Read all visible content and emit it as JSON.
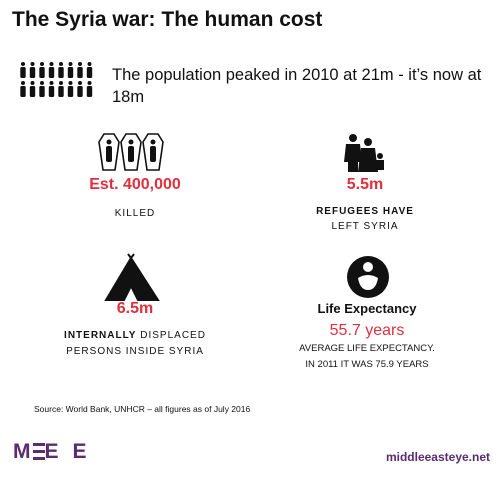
{
  "header": {
    "title": "The Syria war: The human cost"
  },
  "intro": "The population peaked in 2010 at 21m - it’s now at 18m",
  "stats": [
    {
      "value": "Est. 400,000",
      "lines": [
        "KILLED"
      ]
    },
    {
      "value": "5.5m",
      "lines": [
        "REFUGEES HAVE",
        "LEFT SYRIA"
      ]
    },
    {
      "value": "6.5m",
      "lines": [
        {
          "bold": "INTERNALLY",
          "text": "DISPLACED"
        },
        "PERSONS INSIDE SYRIA"
      ]
    },
    {
      "heading": "Life Expectancy",
      "value": "55.7 years",
      "lines": [
        "AVERAGE LIFE EXPECTANCY.",
        "IN 2011 IT WAS 75.9 YEARS"
      ]
    }
  ],
  "footer": {
    "source": "Source: World Bank, UNHCR – all figures as of July 2016",
    "logo": "MEE",
    "url": "middleeasteye.net"
  }
}
